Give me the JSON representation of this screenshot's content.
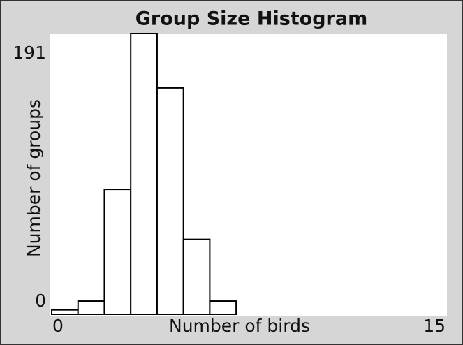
{
  "chart_data": {
    "type": "histogram",
    "title": "Group Size Histogram",
    "x_label": "Number of birds",
    "y_label": "Number of groups",
    "bins": [
      0,
      1,
      2,
      3,
      4,
      5,
      6,
      7
    ],
    "values": [
      3,
      9,
      85,
      191,
      154,
      51,
      9
    ],
    "xlim": [
      0,
      15
    ],
    "ylim": [
      0,
      191
    ],
    "xticks": [
      0,
      15
    ],
    "yticks": [
      0,
      191
    ],
    "color": "#ffffff"
  }
}
